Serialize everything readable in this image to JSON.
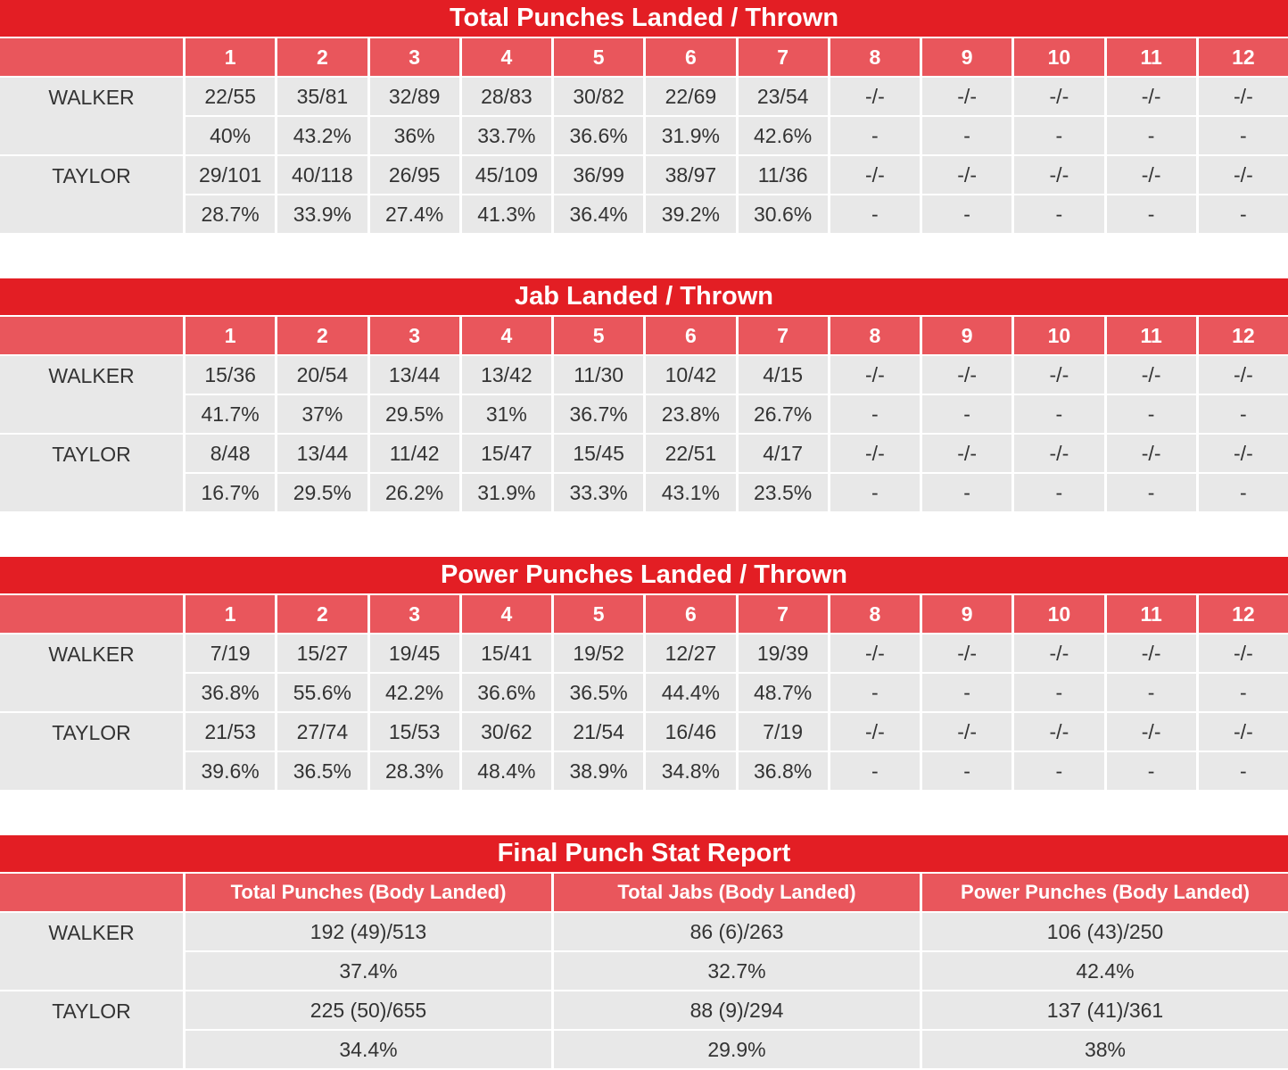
{
  "colors": {
    "title_bg": "#e31e24",
    "header_bg": "#e9565c",
    "cell_bg": "#e8e8e8"
  },
  "tables": [
    {
      "title": "Total Punches Landed / Thrown",
      "rounds": [
        "1",
        "2",
        "3",
        "4",
        "5",
        "6",
        "7",
        "8",
        "9",
        "10",
        "11",
        "12"
      ],
      "fighters": [
        {
          "name": "WALKER",
          "landed": [
            "22/55",
            "35/81",
            "32/89",
            "28/83",
            "30/82",
            "22/69",
            "23/54",
            "-/-",
            "-/-",
            "-/-",
            "-/-",
            "-/-"
          ],
          "pct": [
            "40%",
            "43.2%",
            "36%",
            "33.7%",
            "36.6%",
            "31.9%",
            "42.6%",
            "-",
            "-",
            "-",
            "-",
            "-"
          ]
        },
        {
          "name": "TAYLOR",
          "landed": [
            "29/101",
            "40/118",
            "26/95",
            "45/109",
            "36/99",
            "38/97",
            "11/36",
            "-/-",
            "-/-",
            "-/-",
            "-/-",
            "-/-"
          ],
          "pct": [
            "28.7%",
            "33.9%",
            "27.4%",
            "41.3%",
            "36.4%",
            "39.2%",
            "30.6%",
            "-",
            "-",
            "-",
            "-",
            "-"
          ]
        }
      ]
    },
    {
      "title": "Jab Landed / Thrown",
      "rounds": [
        "1",
        "2",
        "3",
        "4",
        "5",
        "6",
        "7",
        "8",
        "9",
        "10",
        "11",
        "12"
      ],
      "fighters": [
        {
          "name": "WALKER",
          "landed": [
            "15/36",
            "20/54",
            "13/44",
            "13/42",
            "11/30",
            "10/42",
            "4/15",
            "-/-",
            "-/-",
            "-/-",
            "-/-",
            "-/-"
          ],
          "pct": [
            "41.7%",
            "37%",
            "29.5%",
            "31%",
            "36.7%",
            "23.8%",
            "26.7%",
            "-",
            "-",
            "-",
            "-",
            "-"
          ]
        },
        {
          "name": "TAYLOR",
          "landed": [
            "8/48",
            "13/44",
            "11/42",
            "15/47",
            "15/45",
            "22/51",
            "4/17",
            "-/-",
            "-/-",
            "-/-",
            "-/-",
            "-/-"
          ],
          "pct": [
            "16.7%",
            "29.5%",
            "26.2%",
            "31.9%",
            "33.3%",
            "43.1%",
            "23.5%",
            "-",
            "-",
            "-",
            "-",
            "-"
          ]
        }
      ]
    },
    {
      "title": "Power Punches Landed / Thrown",
      "rounds": [
        "1",
        "2",
        "3",
        "4",
        "5",
        "6",
        "7",
        "8",
        "9",
        "10",
        "11",
        "12"
      ],
      "fighters": [
        {
          "name": "WALKER",
          "landed": [
            "7/19",
            "15/27",
            "19/45",
            "15/41",
            "19/52",
            "12/27",
            "19/39",
            "-/-",
            "-/-",
            "-/-",
            "-/-",
            "-/-"
          ],
          "pct": [
            "36.8%",
            "55.6%",
            "42.2%",
            "36.6%",
            "36.5%",
            "44.4%",
            "48.7%",
            "-",
            "-",
            "-",
            "-",
            "-"
          ]
        },
        {
          "name": "TAYLOR",
          "landed": [
            "21/53",
            "27/74",
            "15/53",
            "30/62",
            "21/54",
            "16/46",
            "7/19",
            "-/-",
            "-/-",
            "-/-",
            "-/-",
            "-/-"
          ],
          "pct": [
            "39.6%",
            "36.5%",
            "28.3%",
            "48.4%",
            "38.9%",
            "34.8%",
            "36.8%",
            "-",
            "-",
            "-",
            "-",
            "-"
          ]
        }
      ]
    }
  ],
  "final": {
    "title": "Final Punch Stat Report",
    "headers": [
      "Total Punches (Body Landed)",
      "Total Jabs (Body Landed)",
      "Power Punches (Body Landed)"
    ],
    "fighters": [
      {
        "name": "WALKER",
        "landed": [
          "192 (49)/513",
          "86 (6)/263",
          "106 (43)/250"
        ],
        "pct": [
          "37.4%",
          "32.7%",
          "42.4%"
        ]
      },
      {
        "name": "TAYLOR",
        "landed": [
          "225 (50)/655",
          "88 (9)/294",
          "137 (41)/361"
        ],
        "pct": [
          "34.4%",
          "29.9%",
          "38%"
        ]
      }
    ]
  }
}
